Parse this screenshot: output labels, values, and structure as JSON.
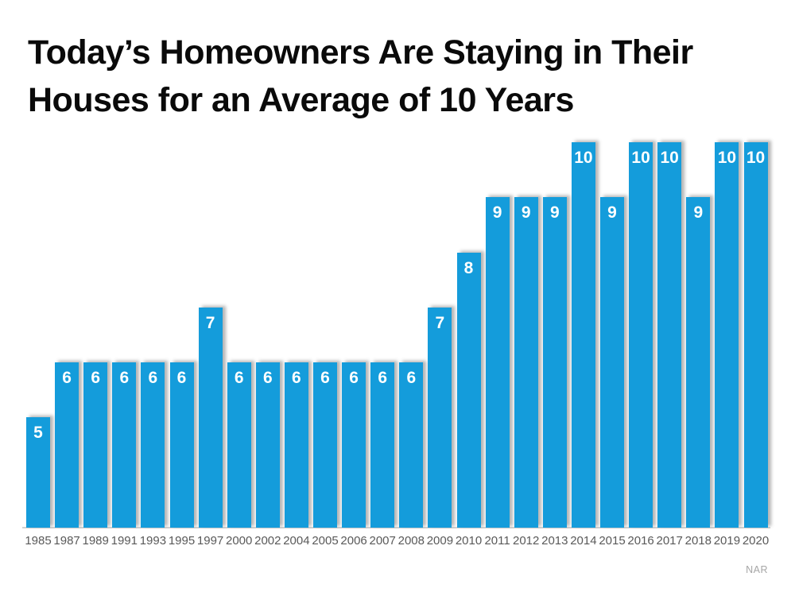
{
  "title": {
    "text": "Today’s Homeowners Are Staying in Their Houses for an Average of 10 Years",
    "lines": [
      "Today’s Homeowners Are Staying in Their",
      "Houses for an Average of 10 Years"
    ]
  },
  "footer": {
    "source_label": "NAR"
  },
  "chart_data": {
    "type": "bar",
    "title": "Today’s Homeowners Are Staying in Their Houses for an Average of 10 Years",
    "categories": [
      "1985",
      "1987",
      "1989",
      "1991",
      "1993",
      "1995",
      "1997",
      "2000",
      "2002",
      "2004",
      "2005",
      "2006",
      "2007",
      "2008",
      "2009",
      "2010",
      "2011",
      "2012",
      "2013",
      "2014",
      "2015",
      "2016",
      "2017",
      "2018",
      "2019",
      "2020"
    ],
    "values": [
      5,
      6,
      6,
      6,
      6,
      6,
      7,
      6,
      6,
      6,
      6,
      6,
      6,
      6,
      7,
      8,
      9,
      9,
      9,
      10,
      9,
      10,
      10,
      9,
      10,
      10
    ],
    "xlabel": "",
    "ylabel": "",
    "ylim": [
      3,
      10
    ],
    "grid": false,
    "legend": false,
    "data_labels": true,
    "bar_color": "#149CDB",
    "data_label_color": "#FFFFFF",
    "tick_label_color": "#595959",
    "source": "NAR"
  }
}
